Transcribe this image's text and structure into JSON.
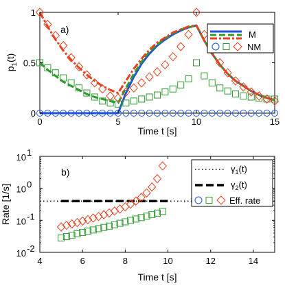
{
  "chart_data": [
    {
      "type": "line",
      "panel_label": "a)",
      "xlabel": "Time t [s]",
      "ylabel": "p₁(t)",
      "ylabel_main": "p",
      "ylabel_sub": "1",
      "ylabel_tail": "(t)",
      "xlim": [
        0,
        15
      ],
      "ylim": [
        0,
        1
      ],
      "xticks": [
        0,
        5,
        10,
        15
      ],
      "xtick_labels": [
        "0",
        "5",
        "10",
        "15"
      ],
      "yticks": [
        0,
        0.5,
        1
      ],
      "ytick_labels": [
        "0",
        "0.5",
        "1"
      ],
      "grid": false,
      "legend_position": "top-right",
      "legend": [
        {
          "label": "M",
          "kind": "lines"
        },
        {
          "label": "NM",
          "kind": "markers"
        }
      ],
      "colors": {
        "blue": "#1f52d6",
        "green": "#2f9a2f",
        "red": "#e8411e"
      },
      "series": [
        {
          "name": "M",
          "style": "blue-solid",
          "x": [
            0,
            0.5,
            1,
            1.5,
            2,
            2.5,
            3,
            3.5,
            4,
            4.5,
            5,
            5.5,
            6,
            6.5,
            7,
            7.5,
            8,
            8.5,
            9,
            9.5,
            10,
            10.5,
            11,
            11.5,
            12,
            12.5,
            13,
            13.5,
            14,
            14.5,
            15
          ],
          "y": [
            0,
            0,
            0,
            0,
            0,
            0,
            0,
            0,
            0,
            0,
            0,
            0.2,
            0.36,
            0.49,
            0.59,
            0.67,
            0.73,
            0.78,
            0.82,
            0.85,
            0.87,
            0.72,
            0.59,
            0.48,
            0.39,
            0.32,
            0.27,
            0.22,
            0.18,
            0.15,
            0.13
          ]
        },
        {
          "name": "M",
          "style": "green-dashed",
          "x": [
            0,
            0.5,
            1,
            1.5,
            2,
            2.5,
            3,
            3.5,
            4,
            4.5,
            5,
            5.5,
            6,
            6.5,
            7,
            7.5,
            8,
            8.5,
            9,
            9.5,
            10,
            10.5,
            11,
            11.5,
            12,
            12.5,
            13,
            13.5,
            14,
            14.5,
            15
          ],
          "y": [
            0.5,
            0.43,
            0.37,
            0.31,
            0.27,
            0.23,
            0.19,
            0.16,
            0.14,
            0.12,
            0.1,
            0.25,
            0.39,
            0.51,
            0.61,
            0.68,
            0.74,
            0.79,
            0.83,
            0.85,
            0.87,
            0.72,
            0.59,
            0.48,
            0.39,
            0.32,
            0.27,
            0.22,
            0.18,
            0.15,
            0.13
          ]
        },
        {
          "name": "M",
          "style": "red-dashdot",
          "x": [
            0,
            0.5,
            1,
            1.5,
            2,
            2.5,
            3,
            3.5,
            4,
            4.5,
            5,
            5.5,
            6,
            6.5,
            7,
            7.5,
            8,
            8.5,
            9,
            9.5,
            10,
            10.5,
            11,
            11.5,
            12,
            12.5,
            13,
            13.5,
            14,
            14.5,
            15
          ],
          "y": [
            1,
            0.86,
            0.73,
            0.62,
            0.53,
            0.45,
            0.38,
            0.32,
            0.27,
            0.23,
            0.2,
            0.32,
            0.44,
            0.54,
            0.63,
            0.7,
            0.75,
            0.8,
            0.83,
            0.86,
            0.87,
            0.72,
            0.59,
            0.48,
            0.39,
            0.32,
            0.27,
            0.22,
            0.18,
            0.15,
            0.13
          ]
        },
        {
          "name": "NM",
          "style": "blue-circles",
          "x": [
            0,
            0.5,
            1,
            1.5,
            2,
            2.5,
            3,
            3.5,
            4,
            4.5,
            5,
            5.5,
            6,
            6.5,
            7,
            7.5,
            8,
            8.5,
            9,
            9.5,
            10,
            10.5,
            11,
            11.5,
            12,
            12.5,
            13,
            13.5,
            14,
            14.5,
            15
          ],
          "y": [
            0,
            0,
            0,
            0,
            0,
            0,
            0,
            0,
            0,
            0,
            0,
            0,
            0,
            0,
            0,
            0,
            0,
            0,
            0,
            0,
            0,
            0,
            0,
            0,
            0,
            0,
            0,
            0,
            0,
            0,
            0
          ]
        },
        {
          "name": "NM",
          "style": "green-squares",
          "x": [
            0,
            0.5,
            1,
            1.5,
            2,
            2.5,
            3,
            3.5,
            4,
            4.5,
            5,
            5.5,
            6,
            6.5,
            7,
            7.5,
            8,
            8.5,
            9,
            9.5,
            10,
            10.5,
            11,
            11.5,
            12,
            12.5,
            13,
            13.5,
            14,
            14.5,
            15
          ],
          "y": [
            0.5,
            0.45,
            0.4,
            0.35,
            0.3,
            0.25,
            0.2,
            0.16,
            0.12,
            0.1,
            0.09,
            0.1,
            0.12,
            0.14,
            0.16,
            0.18,
            0.21,
            0.24,
            0.28,
            0.34,
            0.5,
            0.37,
            0.3,
            0.25,
            0.22,
            0.19,
            0.17,
            0.16,
            0.15,
            0.14,
            0.14
          ]
        },
        {
          "name": "NM",
          "style": "red-diamonds",
          "x": [
            0,
            0.5,
            1,
            1.5,
            2,
            2.5,
            3,
            3.5,
            4,
            4.5,
            5,
            5.5,
            6,
            6.5,
            7,
            7.5,
            8,
            8.5,
            9,
            9.5,
            10,
            10.5,
            11,
            11.5,
            12,
            12.5,
            13,
            13.5,
            14,
            14.5,
            15
          ],
          "y": [
            1,
            0.88,
            0.77,
            0.67,
            0.55,
            0.46,
            0.38,
            0.3,
            0.24,
            0.17,
            0.15,
            0.21,
            0.25,
            0.3,
            0.36,
            0.41,
            0.48,
            0.56,
            0.66,
            0.78,
            1,
            0.78,
            0.62,
            0.5,
            0.4,
            0.32,
            0.26,
            0.21,
            0.17,
            0.14,
            0.12
          ]
        }
      ]
    },
    {
      "type": "line",
      "panel_label": "b)",
      "xlabel": "Time t [s]",
      "ylabel": "Rate [1/s]",
      "xlim": [
        4,
        15
      ],
      "yscale": "log",
      "ylim": [
        0.01,
        10
      ],
      "xticks": [
        4,
        6,
        8,
        10,
        12,
        14
      ],
      "xtick_labels": [
        "4",
        "6",
        "8",
        "10",
        "12",
        "14"
      ],
      "yticks": [
        0.01,
        0.1,
        1,
        10
      ],
      "ytick_labels": [
        {
          "base": "10",
          "exp": "-2"
        },
        {
          "base": "10",
          "exp": "-1"
        },
        {
          "base": "10",
          "exp": "0"
        },
        {
          "base": "10",
          "exp": "1"
        }
      ],
      "grid": false,
      "legend_position": "top-right",
      "legend": [
        {
          "label": "γ₁(t)",
          "main": "γ",
          "sub": "1",
          "tail": "(t)",
          "kind": "dotted"
        },
        {
          "label": "γ₂(t)",
          "main": "γ",
          "sub": "2",
          "tail": "(t)",
          "kind": "dashed"
        },
        {
          "label": "Eff. rate",
          "kind": "markers"
        }
      ],
      "series": [
        {
          "name": "γ₁(t)",
          "style": "black-dotted",
          "x": [
            4,
            15
          ],
          "y": [
            0.4,
            0.4
          ]
        },
        {
          "name": "γ₂(t)",
          "style": "black-dashed",
          "x": [
            5,
            10
          ],
          "y": [
            0.4,
            0.4
          ]
        },
        {
          "name": "Eff. rate",
          "style": "green-squares",
          "x": [
            5,
            5.25,
            5.5,
            5.75,
            6,
            6.25,
            6.5,
            6.75,
            7,
            7.25,
            7.5,
            7.75,
            8,
            8.25,
            8.5,
            8.75,
            9,
            9.25,
            9.5,
            9.75
          ],
          "y": [
            0.028,
            0.031,
            0.034,
            0.038,
            0.042,
            0.046,
            0.05,
            0.055,
            0.06,
            0.066,
            0.073,
            0.081,
            0.09,
            0.1,
            0.11,
            0.122,
            0.135,
            0.15,
            0.168,
            0.19
          ]
        },
        {
          "name": "Eff. rate",
          "style": "red-diamonds",
          "x": [
            5,
            5.25,
            5.5,
            5.75,
            6,
            6.25,
            6.5,
            6.75,
            7,
            7.25,
            7.5,
            7.75,
            8,
            8.25,
            8.5,
            8.75,
            9,
            9.25,
            9.5,
            9.75
          ],
          "y": [
            0.062,
            0.07,
            0.077,
            0.085,
            0.095,
            0.105,
            0.118,
            0.132,
            0.15,
            0.17,
            0.195,
            0.225,
            0.265,
            0.32,
            0.4,
            0.52,
            0.72,
            1.1,
            2,
            5
          ]
        }
      ]
    }
  ]
}
